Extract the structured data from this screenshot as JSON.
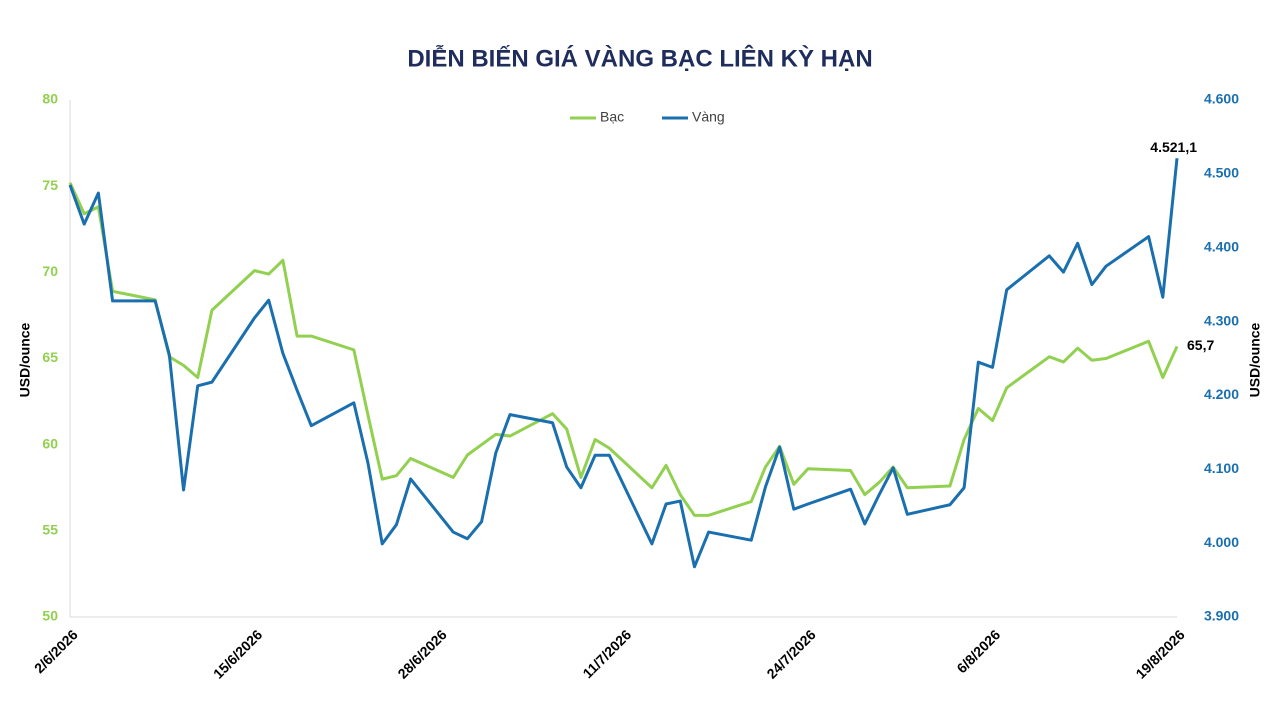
{
  "chart_data": {
    "type": "line",
    "title": "DIỄN BIẾN GIÁ VÀNG BẠC LIÊN KỲ HẠN",
    "y_label": "USD/ounce",
    "y2_label": "USD/ounce",
    "x": [
      "2/6/2026",
      "3/6/2026",
      "4/6/2026",
      "5/6/2026",
      "8/6/2026",
      "9/6/2026",
      "10/6/2026",
      "11/6/2026",
      "12/6/2026",
      "15/6/2026",
      "16/6/2026",
      "17/6/2026",
      "18/6/2026",
      "19/6/2026",
      "22/6/2026",
      "23/6/2026",
      "24/6/2026",
      "25/6/2026",
      "26/6/2026",
      "29/6/2026",
      "30/6/2026",
      "1/7/2026",
      "2/7/2026",
      "3/7/2026",
      "6/7/2026",
      "7/7/2026",
      "8/7/2026",
      "9/7/2026",
      "10/7/2026",
      "13/7/2026",
      "14/7/2026",
      "15/7/2026",
      "16/7/2026",
      "17/7/2026",
      "20/7/2026",
      "21/7/2026",
      "22/7/2026",
      "23/7/2026",
      "24/7/2026",
      "27/7/2026",
      "28/7/2026",
      "29/7/2026",
      "30/7/2026",
      "31/7/2026",
      "3/8/2026",
      "4/8/2026",
      "5/8/2026",
      "6/8/2026",
      "7/8/2026",
      "10/8/2026",
      "11/8/2026",
      "12/8/2026",
      "13/8/2026",
      "14/8/2026",
      "17/8/2026",
      "18/8/2026",
      "19/8/2026"
    ],
    "xlim": [
      "2/6/2026",
      "19/8/2026"
    ],
    "xticks": [
      "2/6/2026",
      "15/6/2026",
      "28/6/2026",
      "11/7/2026",
      "24/7/2026",
      "6/8/2026",
      "19/8/2026"
    ],
    "series": [
      {
        "name": "Bạc",
        "color": "#92d050",
        "axis": "y",
        "values": [
          75.2,
          73.4,
          73.8,
          68.9,
          68.4,
          65.1,
          64.6,
          63.9,
          67.8,
          70.1,
          69.9,
          70.7,
          66.3,
          66.3,
          65.5,
          61.7,
          58.0,
          58.2,
          59.2,
          58.1,
          59.4,
          60.0,
          60.6,
          60.5,
          61.8,
          60.9,
          58.1,
          60.3,
          59.8,
          57.5,
          58.8,
          57.1,
          55.9,
          55.9,
          56.7,
          58.7,
          59.9,
          57.7,
          58.6,
          58.5,
          57.1,
          57.8,
          58.7,
          57.5,
          57.6,
          60.3,
          62.1,
          61.4,
          63.3,
          65.1,
          64.8,
          65.6,
          64.9,
          65.0,
          66.0,
          63.9,
          65.7
        ],
        "value_labels": [
          null,
          null,
          null,
          null,
          null,
          null,
          null,
          null,
          null,
          null,
          null,
          null,
          null,
          null,
          null,
          null,
          null,
          null,
          null,
          null,
          null,
          null,
          null,
          null,
          null,
          null,
          null,
          null,
          null,
          null,
          null,
          null,
          null,
          null,
          null,
          null,
          null,
          null,
          null,
          null,
          null,
          null,
          null,
          null,
          null,
          null,
          null,
          null,
          null,
          null,
          null,
          null,
          null,
          null,
          null,
          null,
          "65,7"
        ]
      },
      {
        "name": "Vàng",
        "color": "#1a6faf",
        "axis": "y2",
        "values": [
          4485,
          4432,
          4474,
          4328,
          4328,
          4255,
          4072,
          4213,
          4218,
          4305,
          4329,
          4257,
          4207,
          4159,
          4190,
          4108,
          3999,
          4025,
          4087,
          4015,
          4006,
          4029,
          4122,
          4174,
          4163,
          4103,
          4075,
          4119,
          4119,
          3999,
          4053,
          4057,
          3968,
          4015,
          4004,
          4076,
          4130,
          4046,
          4053,
          4073,
          4026,
          4065,
          4102,
          4039,
          4052,
          4075,
          4245,
          4238,
          4343,
          4389,
          4367,
          4406,
          4350,
          4375,
          4415,
          4333,
          4521.1
        ],
        "value_labels": [
          null,
          null,
          null,
          null,
          null,
          null,
          null,
          null,
          null,
          null,
          null,
          null,
          null,
          null,
          null,
          null,
          null,
          null,
          null,
          null,
          null,
          null,
          null,
          null,
          null,
          null,
          null,
          null,
          null,
          null,
          null,
          null,
          null,
          null,
          null,
          null,
          null,
          null,
          null,
          null,
          null,
          null,
          null,
          null,
          null,
          null,
          null,
          null,
          null,
          null,
          null,
          null,
          null,
          null,
          null,
          null,
          "4.521,1"
        ]
      }
    ],
    "ylim": [
      50,
      80
    ],
    "yticks": [
      50,
      55,
      60,
      65,
      70,
      75,
      80
    ],
    "y_color": "#92d050",
    "y2lim": [
      3900,
      4600
    ],
    "y2ticks": [
      {
        "value": 3900,
        "label": "3.900"
      },
      {
        "value": 4000,
        "label": "4.000"
      },
      {
        "value": 4100,
        "label": "4.100"
      },
      {
        "value": 4200,
        "label": "4.200"
      },
      {
        "value": 4300,
        "label": "4.300"
      },
      {
        "value": 4400,
        "label": "4.400"
      },
      {
        "value": 4500,
        "label": "4.500"
      },
      {
        "value": 4600,
        "label": "4.600"
      }
    ],
    "y2_color": "#1a6faf",
    "grid": false,
    "legend": "top"
  }
}
